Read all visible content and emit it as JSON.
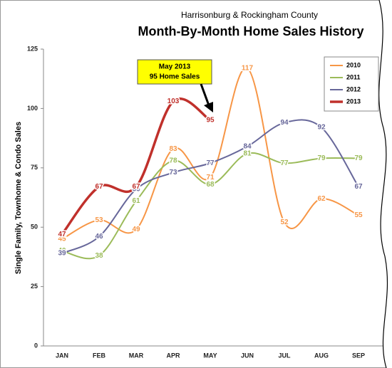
{
  "chart_data": {
    "type": "line",
    "subtitle": "Harrisonburg & Rockingham County",
    "title": "Month-By-Month Home Sales History",
    "y_label": "Single Family, Townhome & Condo Sales",
    "annotation": [
      "May 2013",
      "95 Home Sales"
    ],
    "categories": [
      "JAN",
      "FEB",
      "MAR",
      "APR",
      "MAY",
      "JUN",
      "JUL",
      "AUG",
      "SEP"
    ],
    "series": [
      {
        "name": "2010",
        "color": "#f79646",
        "values": [
          45,
          53,
          49,
          83,
          71,
          117,
          52,
          62,
          55
        ]
      },
      {
        "name": "2011",
        "color": "#9bbb59",
        "values": [
          40,
          38,
          61,
          78,
          68,
          81,
          77,
          79,
          79
        ]
      },
      {
        "name": "2012",
        "color": "#67679a",
        "values": [
          39,
          46,
          66,
          73,
          77,
          84,
          94,
          92,
          67
        ]
      },
      {
        "name": "2013",
        "color": "#c0302b",
        "values": [
          47,
          67,
          67,
          103,
          95,
          null,
          null,
          null,
          null
        ]
      }
    ],
    "ylim": [
      0,
      125
    ],
    "yticks": [
      0,
      25,
      50,
      75,
      100,
      125
    ],
    "grid": false,
    "legend": "top-right"
  }
}
